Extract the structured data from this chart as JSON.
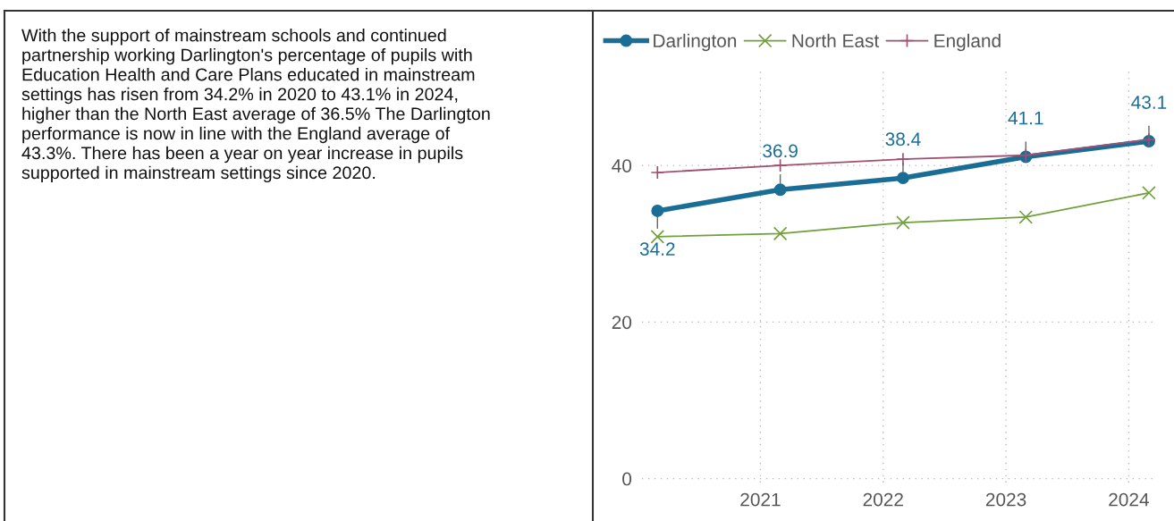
{
  "chart_data": {
    "type": "line",
    "x": [
      "2020-03",
      "2021-03",
      "2022-03",
      "2023-03",
      "2024-03"
    ],
    "series": [
      {
        "name": "Darlington",
        "color": "#1a6e96",
        "values": [
          34.2,
          36.9,
          38.4,
          41.1,
          43.1
        ],
        "value_labels": [
          "34.2",
          "36.9",
          "38.4",
          "41.1",
          "43.1"
        ],
        "marker": "circle"
      },
      {
        "name": "North East",
        "color": "#70a03c",
        "values": [
          30.9,
          31.3,
          32.7,
          33.4,
          36.5
        ],
        "marker": "cross"
      },
      {
        "name": "England",
        "color": "#a05070",
        "values": [
          39.1,
          40.0,
          40.8,
          41.3,
          43.3
        ],
        "marker": "plus"
      }
    ],
    "xlim": [
      "2020-01-15",
      "2024-03-25"
    ],
    "xticks": [
      {
        "value": "2021-01-01",
        "label": "2021"
      },
      {
        "value": "2022-01-01",
        "label": "2022"
      },
      {
        "value": "2023-01-01",
        "label": "2023"
      },
      {
        "value": "2024-01-01",
        "label": "2024"
      }
    ],
    "ylim": [
      -0.5,
      52
    ],
    "yticks": [
      0,
      20,
      40
    ],
    "grid": true,
    "legend": "top left",
    "line_style": "solid",
    "annotations": [
      "With the support of mainstream schools and continued\npartnership working Darlington's percentage of pupils with\nEducation Health and Care Plans educated in mainstream\nsettings has risen from 34.2% in 2020 to 43.1% in 2024,\nhigher than the North East average of 36.5% The Darlington\nperformance is now in line with the England average of\n43.3%. There has been a year on year increase in pupils\nsupported in mainstream settings since 2020."
    ]
  }
}
